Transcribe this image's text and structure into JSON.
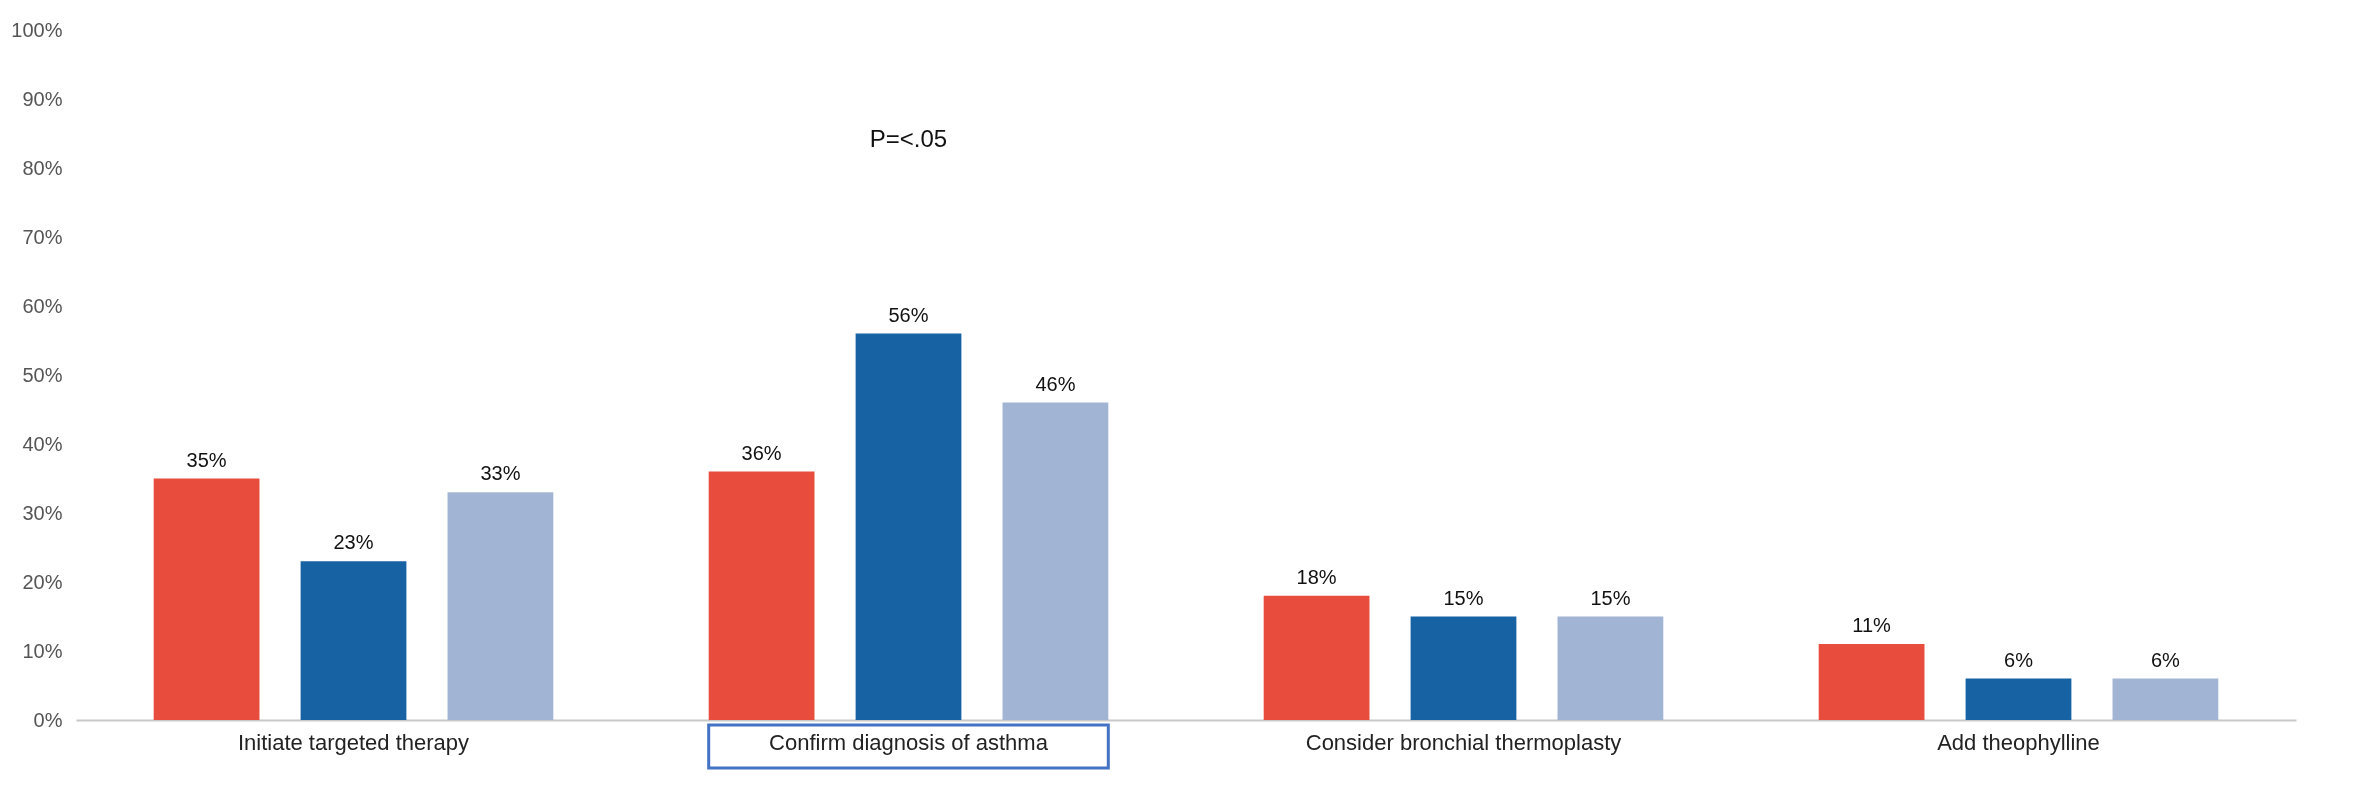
{
  "chart_data": {
    "type": "bar",
    "categories": [
      "Initiate targeted therapy",
      "Confirm diagnosis of asthma",
      "Consider bronchial thermoplasty",
      "Add theophylline"
    ],
    "series": [
      {
        "color": "#e84c3d",
        "values": [
          35,
          36,
          18,
          11
        ],
        "value_labels": [
          "35%",
          "36%",
          "18%",
          "11%"
        ]
      },
      {
        "color": "#1762a3",
        "values": [
          23,
          56,
          15,
          6
        ],
        "value_labels": [
          "23%",
          "56%",
          "15%",
          "6%"
        ]
      },
      {
        "color": "#a2b4d4",
        "values": [
          33,
          46,
          15,
          6
        ],
        "value_labels": [
          "33%",
          "46%",
          "15%",
          "6%"
        ]
      }
    ],
    "ylim": [
      0,
      100
    ],
    "yticks": [
      {
        "value": 0,
        "label": "0%"
      },
      {
        "value": 10,
        "label": "10%"
      },
      {
        "value": 20,
        "label": "20%"
      },
      {
        "value": 30,
        "label": "30%"
      },
      {
        "value": 40,
        "label": "40%"
      },
      {
        "value": 50,
        "label": "50%"
      },
      {
        "value": 60,
        "label": "60%"
      },
      {
        "value": 70,
        "label": "70%"
      },
      {
        "value": 80,
        "label": "80%"
      },
      {
        "value": 90,
        "label": "90%"
      },
      {
        "value": 100,
        "label": "100%"
      }
    ],
    "annotations": [
      "P=<.05"
    ],
    "grid": false,
    "legend": false
  }
}
